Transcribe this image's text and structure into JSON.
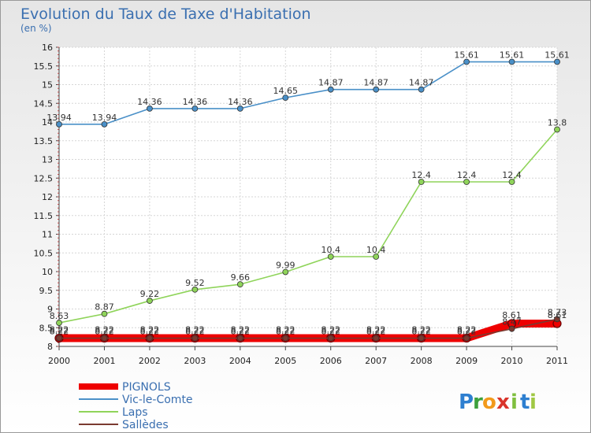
{
  "chart_data": {
    "type": "line",
    "title": "Evolution du Taux de Taxe d'Habitation",
    "subtitle": "(en %)",
    "x": [
      "2000",
      "2001",
      "2002",
      "2003",
      "2004",
      "2005",
      "2006",
      "2007",
      "2008",
      "2009",
      "2010",
      "2011"
    ],
    "ylim": [
      8,
      16
    ],
    "yticks": [
      "8",
      "8.5",
      "9",
      "9.5",
      "10",
      "10.5",
      "11",
      "11.5",
      "12",
      "12.5",
      "13",
      "13.5",
      "14",
      "14.5",
      "15",
      "15.5",
      "16"
    ],
    "grid": true,
    "legend_position": "bottom-left",
    "series": [
      {
        "name": "PIGNOLS",
        "color": "#ee0000",
        "values": [
          8.22,
          8.22,
          8.22,
          8.22,
          8.22,
          8.22,
          8.22,
          8.22,
          8.22,
          8.22,
          8.61,
          8.61
        ]
      },
      {
        "name": "Vic-le-Comte",
        "color": "#4a90c8",
        "values": [
          13.94,
          13.94,
          14.36,
          14.36,
          14.36,
          14.65,
          14.87,
          14.87,
          14.87,
          15.61,
          15.61,
          15.61
        ]
      },
      {
        "name": "Laps",
        "color": "#8fd45a",
        "values": [
          8.63,
          8.87,
          9.22,
          9.52,
          9.66,
          9.99,
          10.4,
          10.4,
          12.4,
          12.4,
          12.4,
          13.8
        ]
      },
      {
        "name": "Sallèdes",
        "color": "#7a3a30",
        "values": [
          8.22,
          8.22,
          8.22,
          8.22,
          8.22,
          8.22,
          8.22,
          8.22,
          8.22,
          8.22,
          8.47,
          8.73
        ]
      }
    ]
  },
  "brand": {
    "letters": [
      "P",
      "r",
      "o",
      "x",
      "i",
      "t",
      "i"
    ],
    "colors": [
      "#2e7fd0",
      "#3da03c",
      "#f29a1b",
      "#d9342b",
      "#7fbf3f",
      "#2e7fd0",
      "#a0c844"
    ]
  }
}
